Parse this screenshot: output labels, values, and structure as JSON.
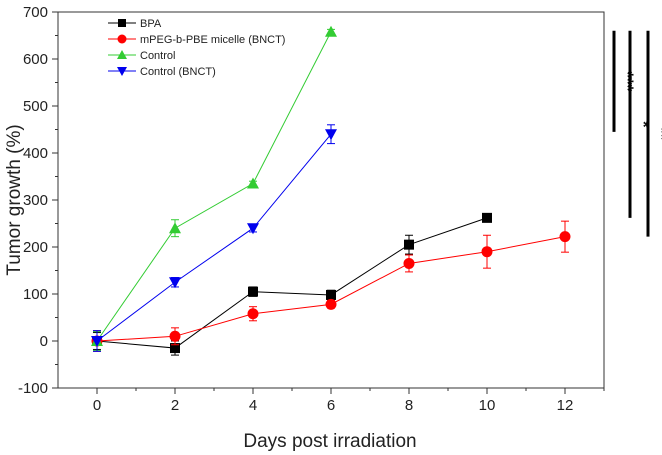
{
  "chart_data": {
    "type": "line",
    "title": "",
    "xlabel": "Days post irradiation",
    "ylabel": "Tumor growth (%)",
    "xlim": [
      -0.8,
      13
    ],
    "ylim": [
      -100,
      700
    ],
    "x_ticks": [
      0,
      2,
      4,
      6,
      8,
      10,
      12
    ],
    "y_ticks": [
      -100,
      0,
      100,
      200,
      300,
      400,
      500,
      600,
      700
    ],
    "grid": false,
    "legend_position": "top-left",
    "series": [
      {
        "name": "BPA",
        "color": "#000000",
        "marker": "square",
        "x": [
          0,
          2,
          4,
          6,
          8,
          10
        ],
        "y": [
          0,
          -15,
          105,
          98,
          205,
          262
        ],
        "err": [
          18,
          15,
          10,
          10,
          20,
          5
        ]
      },
      {
        "name": "mPEG-b-PBE micelle (BNCT)",
        "color": "#ff0000",
        "marker": "circle",
        "x": [
          0,
          2,
          4,
          6,
          8,
          10,
          12
        ],
        "y": [
          0,
          10,
          58,
          78,
          165,
          190,
          222
        ],
        "err": [
          22,
          18,
          15,
          8,
          18,
          35,
          33
        ]
      },
      {
        "name": "Control",
        "color": "#33cc33",
        "marker": "triangle-up",
        "x": [
          0,
          2,
          4,
          6
        ],
        "y": [
          0,
          240,
          335,
          658
        ],
        "err": [
          20,
          18,
          5,
          5
        ]
      },
      {
        "name": "Control (BNCT)",
        "color": "#0000ee",
        "marker": "triangle-down",
        "x": [
          0,
          2,
          4,
          6
        ],
        "y": [
          0,
          125,
          240,
          440
        ],
        "err": [
          22,
          10,
          8,
          20
        ]
      }
    ],
    "significance": [
      {
        "label": "***",
        "y_top": 660,
        "y_bottom": 445
      },
      {
        "label": "*",
        "y_top": 660,
        "y_bottom": 262
      },
      {
        "label": "**",
        "y_top": 660,
        "y_bottom": 222
      }
    ]
  }
}
